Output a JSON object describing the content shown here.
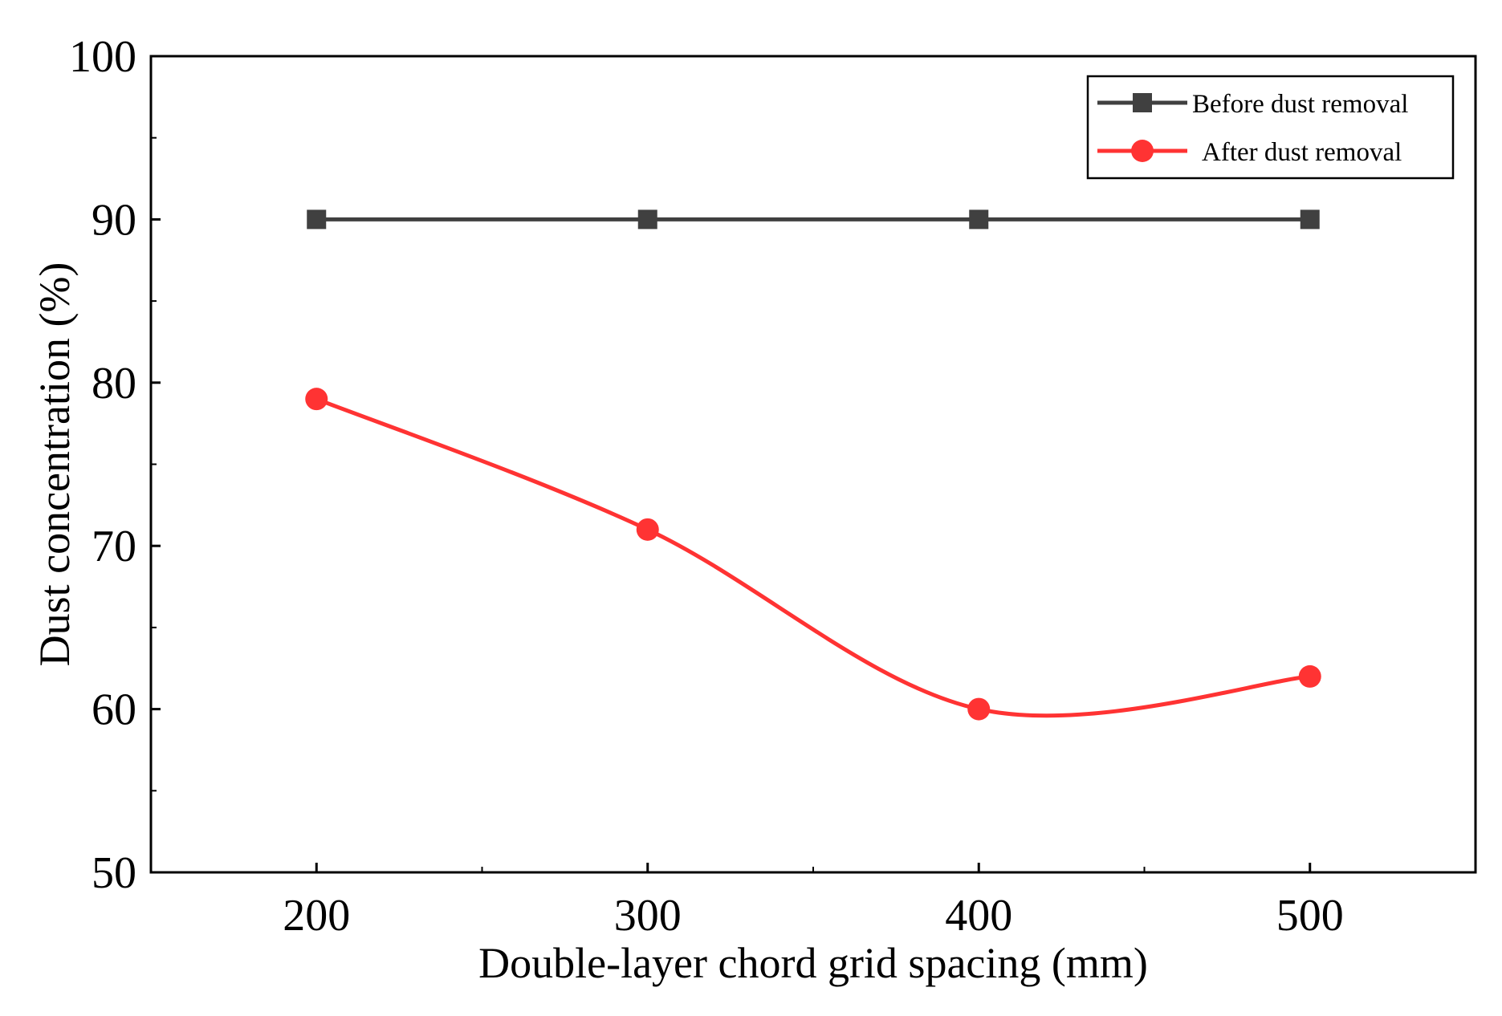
{
  "chart_data": {
    "type": "line",
    "title": "",
    "xlabel": "Double-layer chord grid spacing (mm)",
    "ylabel": "Dust concentration (%)",
    "x": [
      200,
      300,
      400,
      500
    ],
    "xlim": [
      150,
      550
    ],
    "ylim": [
      50,
      100
    ],
    "xticks": [
      200,
      300,
      400,
      500
    ],
    "yticks": [
      50,
      60,
      70,
      80,
      90,
      100
    ],
    "grid": false,
    "legend_position": "top-right",
    "series": [
      {
        "name": "Before dust removal",
        "values": [
          90,
          90,
          90,
          90
        ],
        "color": "#404040",
        "marker": "square",
        "smooth": false
      },
      {
        "name": "After dust removal",
        "values": [
          79,
          71,
          60,
          62
        ],
        "color": "#ff3333",
        "marker": "circle",
        "smooth": true
      }
    ]
  }
}
